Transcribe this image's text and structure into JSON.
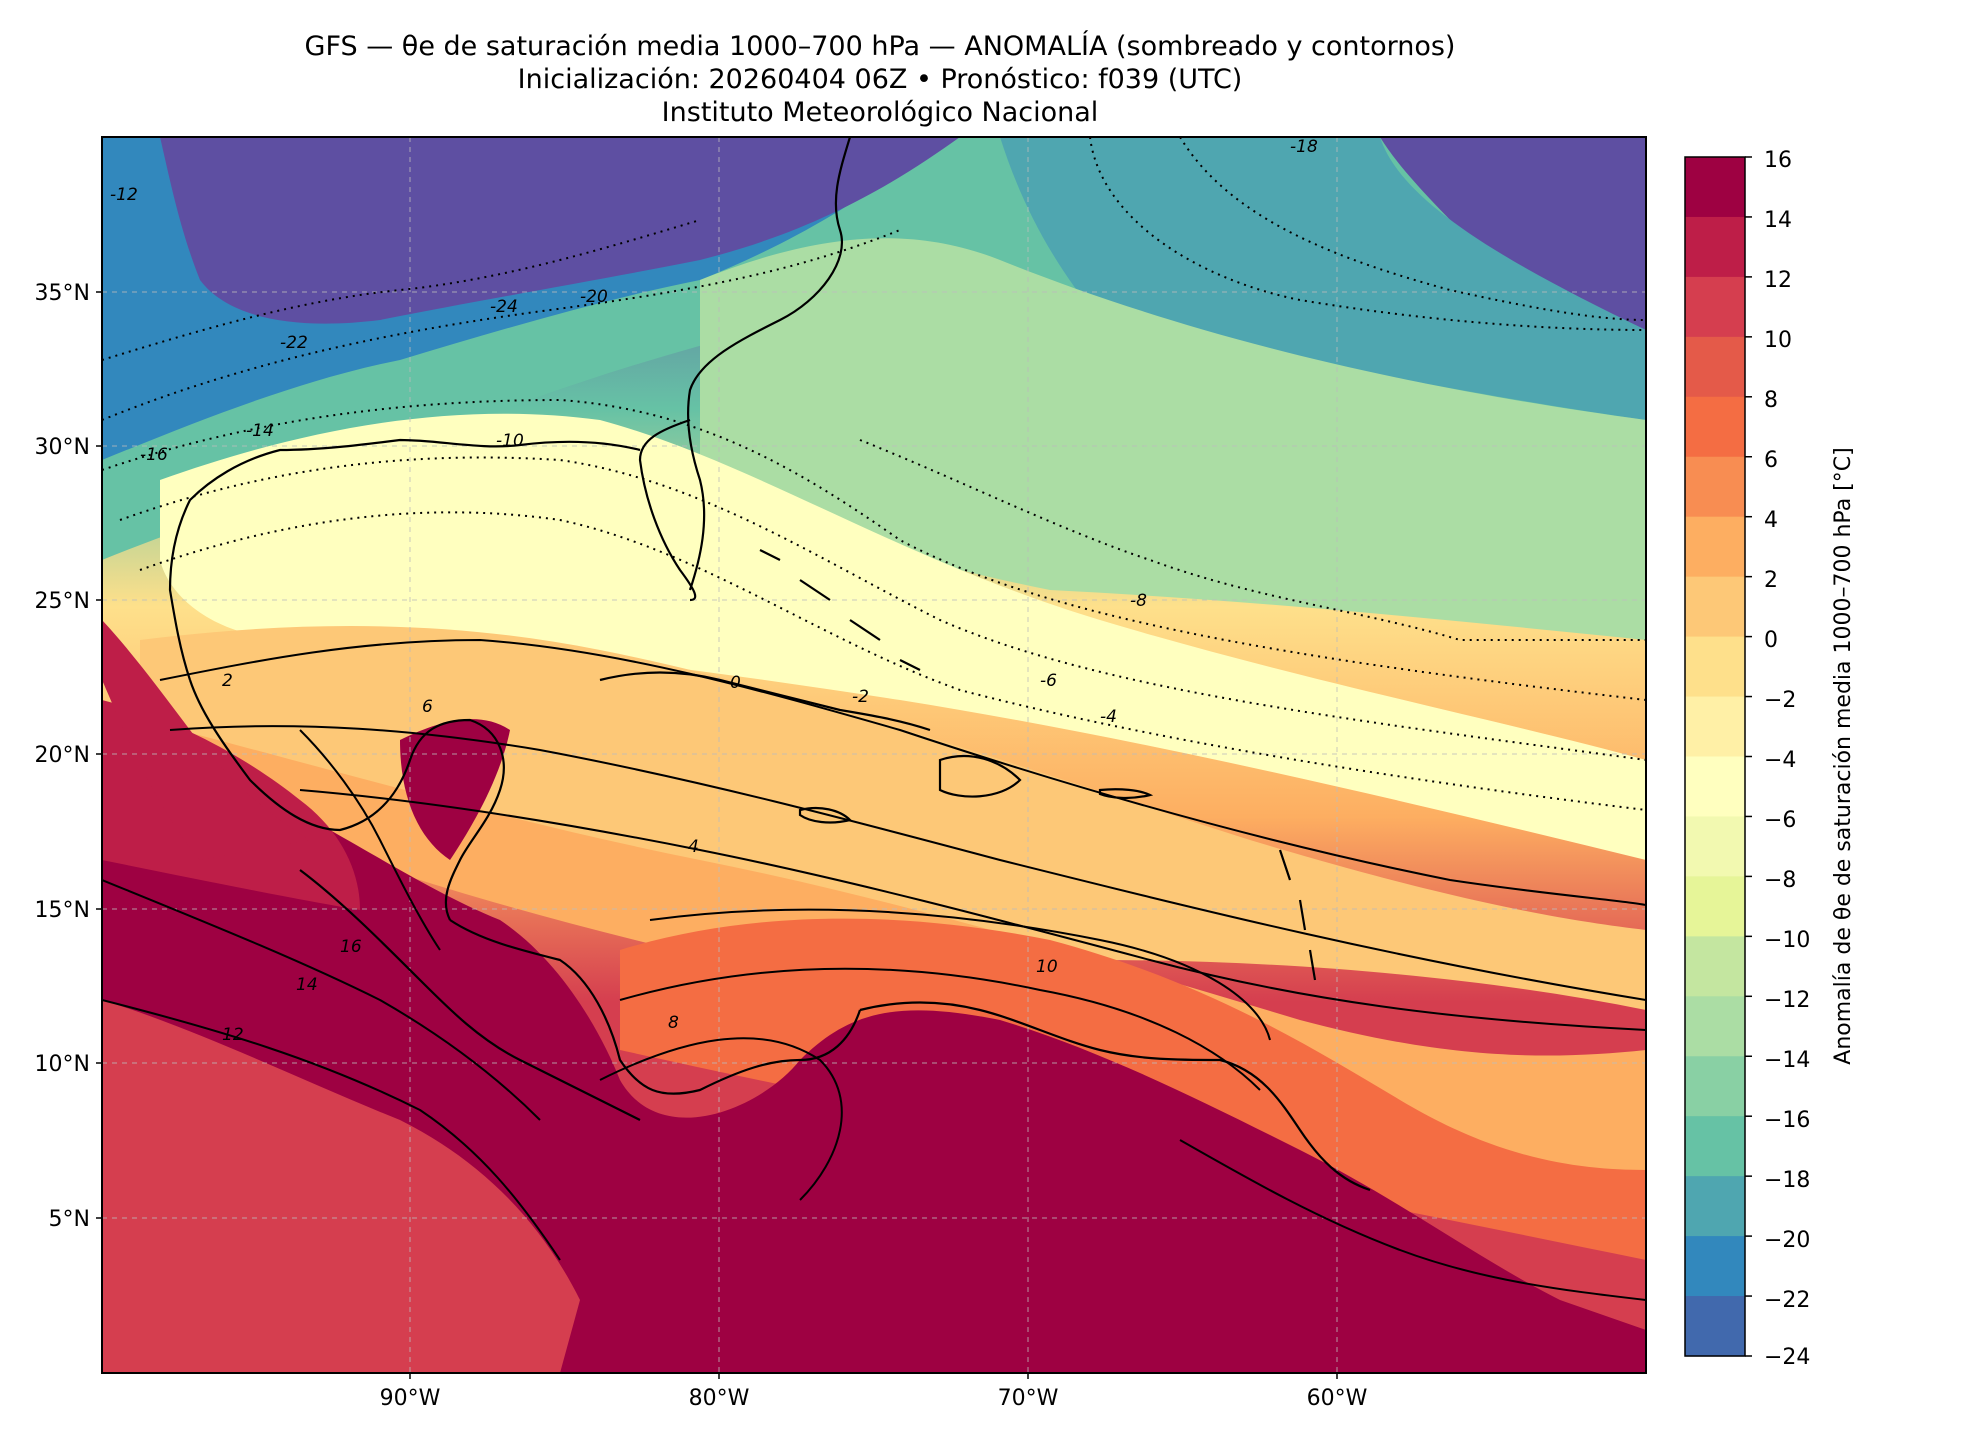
{
  "title": {
    "line1": "GFS — θe de saturación media 1000–700 hPa — ANOMALÍA (sombreado y contornos)",
    "line2": "Inicialización: 20260404 06Z   •   Pronóstico: f039 (UTC)",
    "line3": "Instituto Meteorológico Nacional"
  },
  "map": {
    "lat_ticks": [
      "35°N",
      "30°N",
      "25°N",
      "20°N",
      "15°N",
      "10°N",
      "5°N"
    ],
    "lon_ticks": [
      "90°W",
      "80°W",
      "70°W",
      "60°W"
    ],
    "extent": {
      "lon": [
        -100,
        -50
      ],
      "lat": [
        0,
        40
      ]
    },
    "grid": true,
    "contour_labels": [
      "-24",
      "-22",
      "-20",
      "-18",
      "-16",
      "-14",
      "-12",
      "-10",
      "-8",
      "-6",
      "-4",
      "-2",
      "0",
      "2",
      "4",
      "6",
      "8",
      "10",
      "12",
      "14",
      "16"
    ]
  },
  "colorbar": {
    "label": "Anomalía de θe de saturación media 1000–700 hPa [°C]",
    "ticks": [
      "16",
      "14",
      "12",
      "10",
      "8",
      "6",
      "4",
      "2",
      "0",
      "−2",
      "−4",
      "−6",
      "−8",
      "−10",
      "−12",
      "−14",
      "−16",
      "−18",
      "−20",
      "−22",
      "−24"
    ],
    "range": [
      -24,
      16
    ],
    "step": 2,
    "colors": [
      "#9e0142",
      "#be1e48",
      "#d53e4f",
      "#e45a49",
      "#f46d43",
      "#f88d52",
      "#fdae61",
      "#fdc877",
      "#fee08b",
      "#fff0a6",
      "#ffffbf",
      "#f2f9b0",
      "#e6f598",
      "#c4e6a0",
      "#abdda4",
      "#89d0a4",
      "#66c2a5",
      "#4fa6b0",
      "#3288bd",
      "#4169ad",
      "#5e4fa2"
    ]
  }
}
